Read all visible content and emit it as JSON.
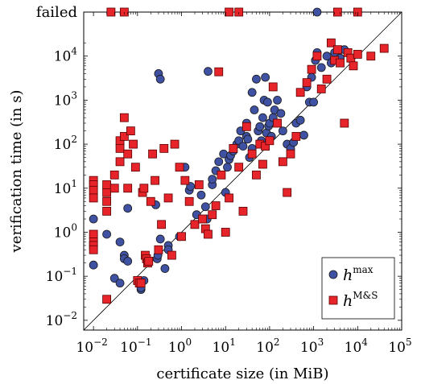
{
  "chart_data": {
    "type": "scatter",
    "xlabel": "certificate size (in MiB)",
    "ylabel": "verification time (in s)",
    "x_scale": "log",
    "y_scale": "log",
    "xlim": [
      0.006,
      100000
    ],
    "ylim": [
      0.006,
      100000
    ],
    "x_ticks": [
      {
        "value": 0.01,
        "base": "10",
        "exp": "−2"
      },
      {
        "value": 0.1,
        "base": "10",
        "exp": "−1"
      },
      {
        "value": 1,
        "base": "10",
        "exp": "0"
      },
      {
        "value": 10,
        "base": "10",
        "exp": "1"
      },
      {
        "value": 100,
        "base": "10",
        "exp": "2"
      },
      {
        "value": 1000,
        "base": "10",
        "exp": "3"
      },
      {
        "value": 10000,
        "base": "10",
        "exp": "4"
      },
      {
        "value": 100000,
        "base": "10",
        "exp": "5"
      }
    ],
    "y_ticks": [
      {
        "value": 0.01,
        "base": "10",
        "exp": "−2"
      },
      {
        "value": 0.1,
        "base": "10",
        "exp": "−1"
      },
      {
        "value": 1,
        "base": "10",
        "exp": "0"
      },
      {
        "value": 10,
        "base": "10",
        "exp": "1"
      },
      {
        "value": 100,
        "base": "10",
        "exp": "2"
      },
      {
        "value": 1000,
        "base": "10",
        "exp": "3"
      },
      {
        "value": 10000,
        "base": "10",
        "exp": "4"
      }
    ],
    "failed_label": "failed",
    "diagonal": true,
    "grid": false,
    "legend_position": "bottom-right",
    "series": [
      {
        "name": "h^max",
        "name_base": "h",
        "name_sup": "max",
        "marker": "circle",
        "color": "#3f51a3",
        "x": [
          0.01,
          0.01,
          0.02,
          0.03,
          0.04,
          0.04,
          0.05,
          0.05,
          0.06,
          0.06,
          0.12,
          0.12,
          0.14,
          0.26,
          0.28,
          0.29,
          0.3,
          0.33,
          0.33,
          0.42,
          0.5,
          0.5,
          0.9,
          1.2,
          1.5,
          1.6,
          2.2,
          2.8,
          3.8,
          3.5,
          4,
          5,
          5,
          6,
          7,
          9,
          10,
          11,
          12,
          13,
          15,
          18,
          20,
          22,
          25,
          30,
          30,
          32,
          35,
          40,
          40,
          45,
          50,
          55,
          60,
          65,
          70,
          75,
          80,
          85,
          90,
          95,
          100,
          110,
          120,
          130,
          150,
          180,
          200,
          250,
          300,
          350,
          400,
          500,
          600,
          700,
          800,
          900,
          1000,
          1100,
          1200,
          1500,
          2000,
          2500,
          3000,
          4000,
          5000,
          1200
        ],
        "y": [
          2.0,
          0.18,
          0.9,
          0.09,
          0.07,
          0.6,
          0.3,
          0.25,
          3.5,
          0.22,
          0.05,
          0.055,
          0.08,
          4.2,
          0.25,
          0.3,
          4000,
          0.7,
          3000,
          0.15,
          0.5,
          0.4,
          0.8,
          30,
          9,
          11,
          2.5,
          7,
          2.0,
          3.8,
          4500,
          12,
          16,
          25,
          40,
          60,
          8,
          30,
          45,
          55,
          70,
          100,
          120,
          200,
          90,
          150,
          300,
          130,
          50,
          80,
          1500,
          600,
          3000,
          200,
          250,
          120,
          400,
          1000,
          3300,
          180,
          900,
          260,
          300,
          150,
          400,
          600,
          1000,
          500,
          200,
          100,
          80,
          110,
          300,
          350,
          160,
          2000,
          900,
          3300,
          900,
          8000,
          12000,
          5500,
          10000,
          7000,
          12000,
          9000,
          14000,
          95000
        ]
      },
      {
        "name": "h^M&S",
        "name_base": "h",
        "name_sup": "M&S",
        "marker": "square",
        "color": "#e8242b",
        "x": [
          0.01,
          0.01,
          0.01,
          0.01,
          0.01,
          0.01,
          0.01,
          0.01,
          0.02,
          0.02,
          0.02,
          0.02,
          0.02,
          0.03,
          0.03,
          0.04,
          0.04,
          0.04,
          0.05,
          0.05,
          0.06,
          0.06,
          0.07,
          0.08,
          0.09,
          0.1,
          0.11,
          0.12,
          0.13,
          0.14,
          0.15,
          0.16,
          0.17,
          0.18,
          0.2,
          0.22,
          0.25,
          0.3,
          0.35,
          0.4,
          0.5,
          0.6,
          0.7,
          0.9,
          1.0,
          1.2,
          1.5,
          2.0,
          2.5,
          3.0,
          3.5,
          4.0,
          5.0,
          6.0,
          7.0,
          8.0,
          10,
          12,
          15,
          20,
          25,
          30,
          40,
          50,
          60,
          70,
          80,
          100,
          120,
          150,
          200,
          250,
          300,
          400,
          500,
          700,
          900,
          1200,
          1500,
          2000,
          2500,
          3000,
          3500,
          4000,
          5000,
          6000,
          7000,
          8000,
          10000,
          20000,
          40000,
          0.025,
          0.05,
          12,
          20,
          3500,
          10000
        ],
        "y": [
          15,
          12,
          9,
          6,
          0.9,
          0.6,
          0.5,
          0.4,
          0.03,
          8,
          12,
          5,
          3,
          20,
          10,
          120,
          80,
          40,
          400,
          150,
          60,
          10,
          200,
          100,
          30,
          0.08,
          0.07,
          0.07,
          8,
          10,
          0.3,
          0.25,
          0.2,
          0.22,
          5,
          60,
          15,
          0.4,
          1.5,
          80,
          6,
          0.3,
          100,
          30,
          0.8,
          15,
          5,
          1.5,
          12,
          2,
          1.2,
          0.9,
          2.5,
          4.0,
          4400,
          20,
          1.0,
          6,
          80,
          30,
          3.0,
          250,
          60,
          20,
          100,
          35,
          90,
          120,
          2000,
          300,
          40,
          8,
          60,
          150,
          1500,
          2500,
          5000,
          10000,
          1800,
          3000,
          20000,
          8000,
          14000,
          7000,
          300,
          12000,
          9000,
          6000,
          11000,
          10000,
          15000,
          95000,
          95000,
          95000,
          95000,
          95000,
          95000
        ]
      }
    ]
  }
}
